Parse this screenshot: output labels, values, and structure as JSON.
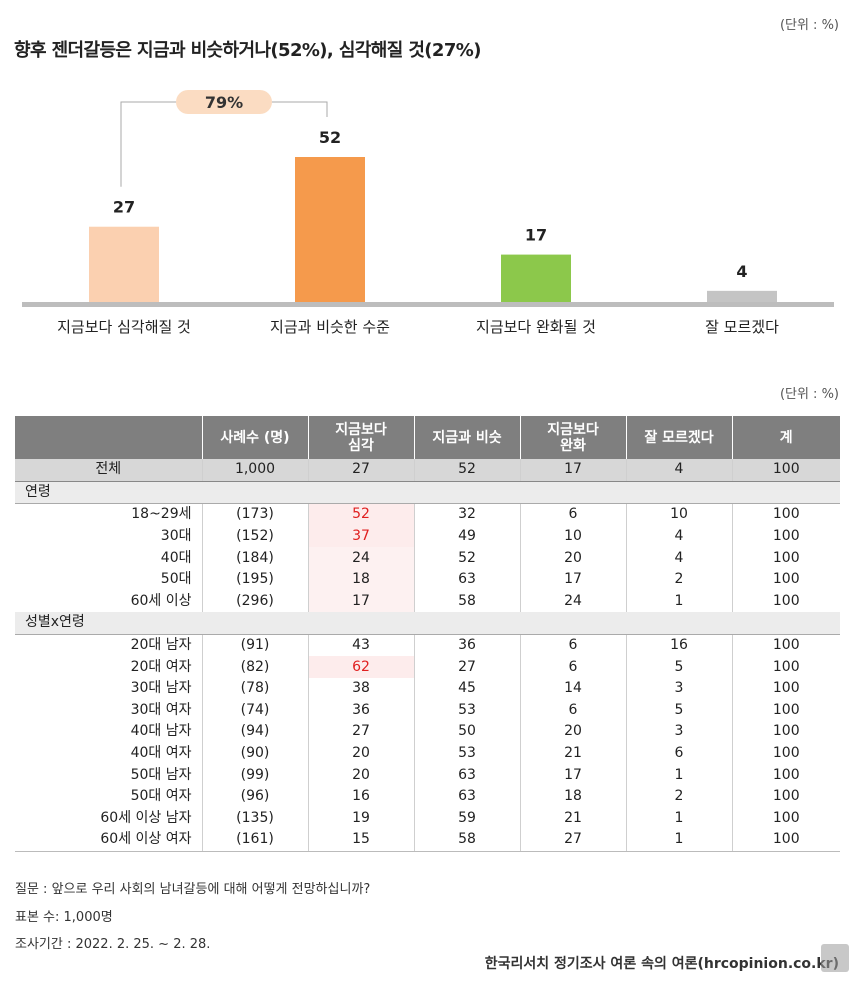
{
  "unit_top": "(단위 : %)",
  "unit_table": "(단위 : %)",
  "chart_data": {
    "type": "bar",
    "title": "향후 젠더갈등은 지금과 비슷하거나(52%), 심각해질 것(27%)",
    "categories": [
      "지금보다 심각해질 것",
      "지금과 비슷한 수준",
      "지금보다 완화될 것",
      "잘 모르겠다"
    ],
    "values": [
      27,
      52,
      17,
      4
    ],
    "colors": [
      "#fbd0b0",
      "#f59a4c",
      "#8cc84b",
      "#c4c4c4"
    ],
    "bracket_label": "79%",
    "bracket_spans": [
      0,
      1
    ],
    "ylim": [
      0,
      52
    ]
  },
  "table": {
    "headers": [
      "",
      "사례수 (명)",
      "지금보다\n심각",
      "지금과 비슷",
      "지금보다\n완화",
      "잘 모르겠다",
      "계"
    ],
    "total": [
      "전체",
      "1,000",
      "27",
      "52",
      "17",
      "4",
      "100"
    ],
    "groups": [
      {
        "name": "연령",
        "rows": [
          [
            "18~29세",
            "(173)",
            "52",
            "32",
            "6",
            "10",
            "100"
          ],
          [
            "30대",
            "(152)",
            "37",
            "49",
            "10",
            "4",
            "100"
          ],
          [
            "40대",
            "(184)",
            "24",
            "52",
            "20",
            "4",
            "100"
          ],
          [
            "50대",
            "(195)",
            "18",
            "63",
            "17",
            "2",
            "100"
          ],
          [
            "60세 이상",
            "(296)",
            "17",
            "58",
            "24",
            "1",
            "100"
          ]
        ]
      },
      {
        "name": "성별x연령",
        "rows": [
          [
            "20대 남자",
            "(91)",
            "43",
            "36",
            "6",
            "16",
            "100"
          ],
          [
            "20대 여자",
            "(82)",
            "62",
            "27",
            "6",
            "5",
            "100"
          ],
          [
            "30대 남자",
            "(78)",
            "38",
            "45",
            "14",
            "3",
            "100"
          ],
          [
            "30대 여자",
            "(74)",
            "36",
            "53",
            "6",
            "5",
            "100"
          ],
          [
            "40대 남자",
            "(94)",
            "27",
            "50",
            "20",
            "3",
            "100"
          ],
          [
            "40대 여자",
            "(90)",
            "20",
            "53",
            "21",
            "6",
            "100"
          ],
          [
            "50대 남자",
            "(99)",
            "20",
            "63",
            "17",
            "1",
            "100"
          ],
          [
            "50대 여자",
            "(96)",
            "16",
            "63",
            "18",
            "2",
            "100"
          ],
          [
            "60세 이상 남자",
            "(135)",
            "19",
            "59",
            "21",
            "1",
            "100"
          ],
          [
            "60세 이상 여자",
            "(161)",
            "15",
            "58",
            "27",
            "1",
            "100"
          ]
        ]
      }
    ]
  },
  "notes": {
    "question": "질문 : 앞으로 우리 사회의 남녀갈등에 대해 어떻게 전망하십니까?",
    "sample": "표본 수: 1,000명",
    "period": "조사기간 : 2022. 2. 25. ~ 2. 28."
  },
  "source": "한국리서치 정기조사 여론 속의 여론(hrcopinion.co.kr)",
  "highlight": "#e02020"
}
